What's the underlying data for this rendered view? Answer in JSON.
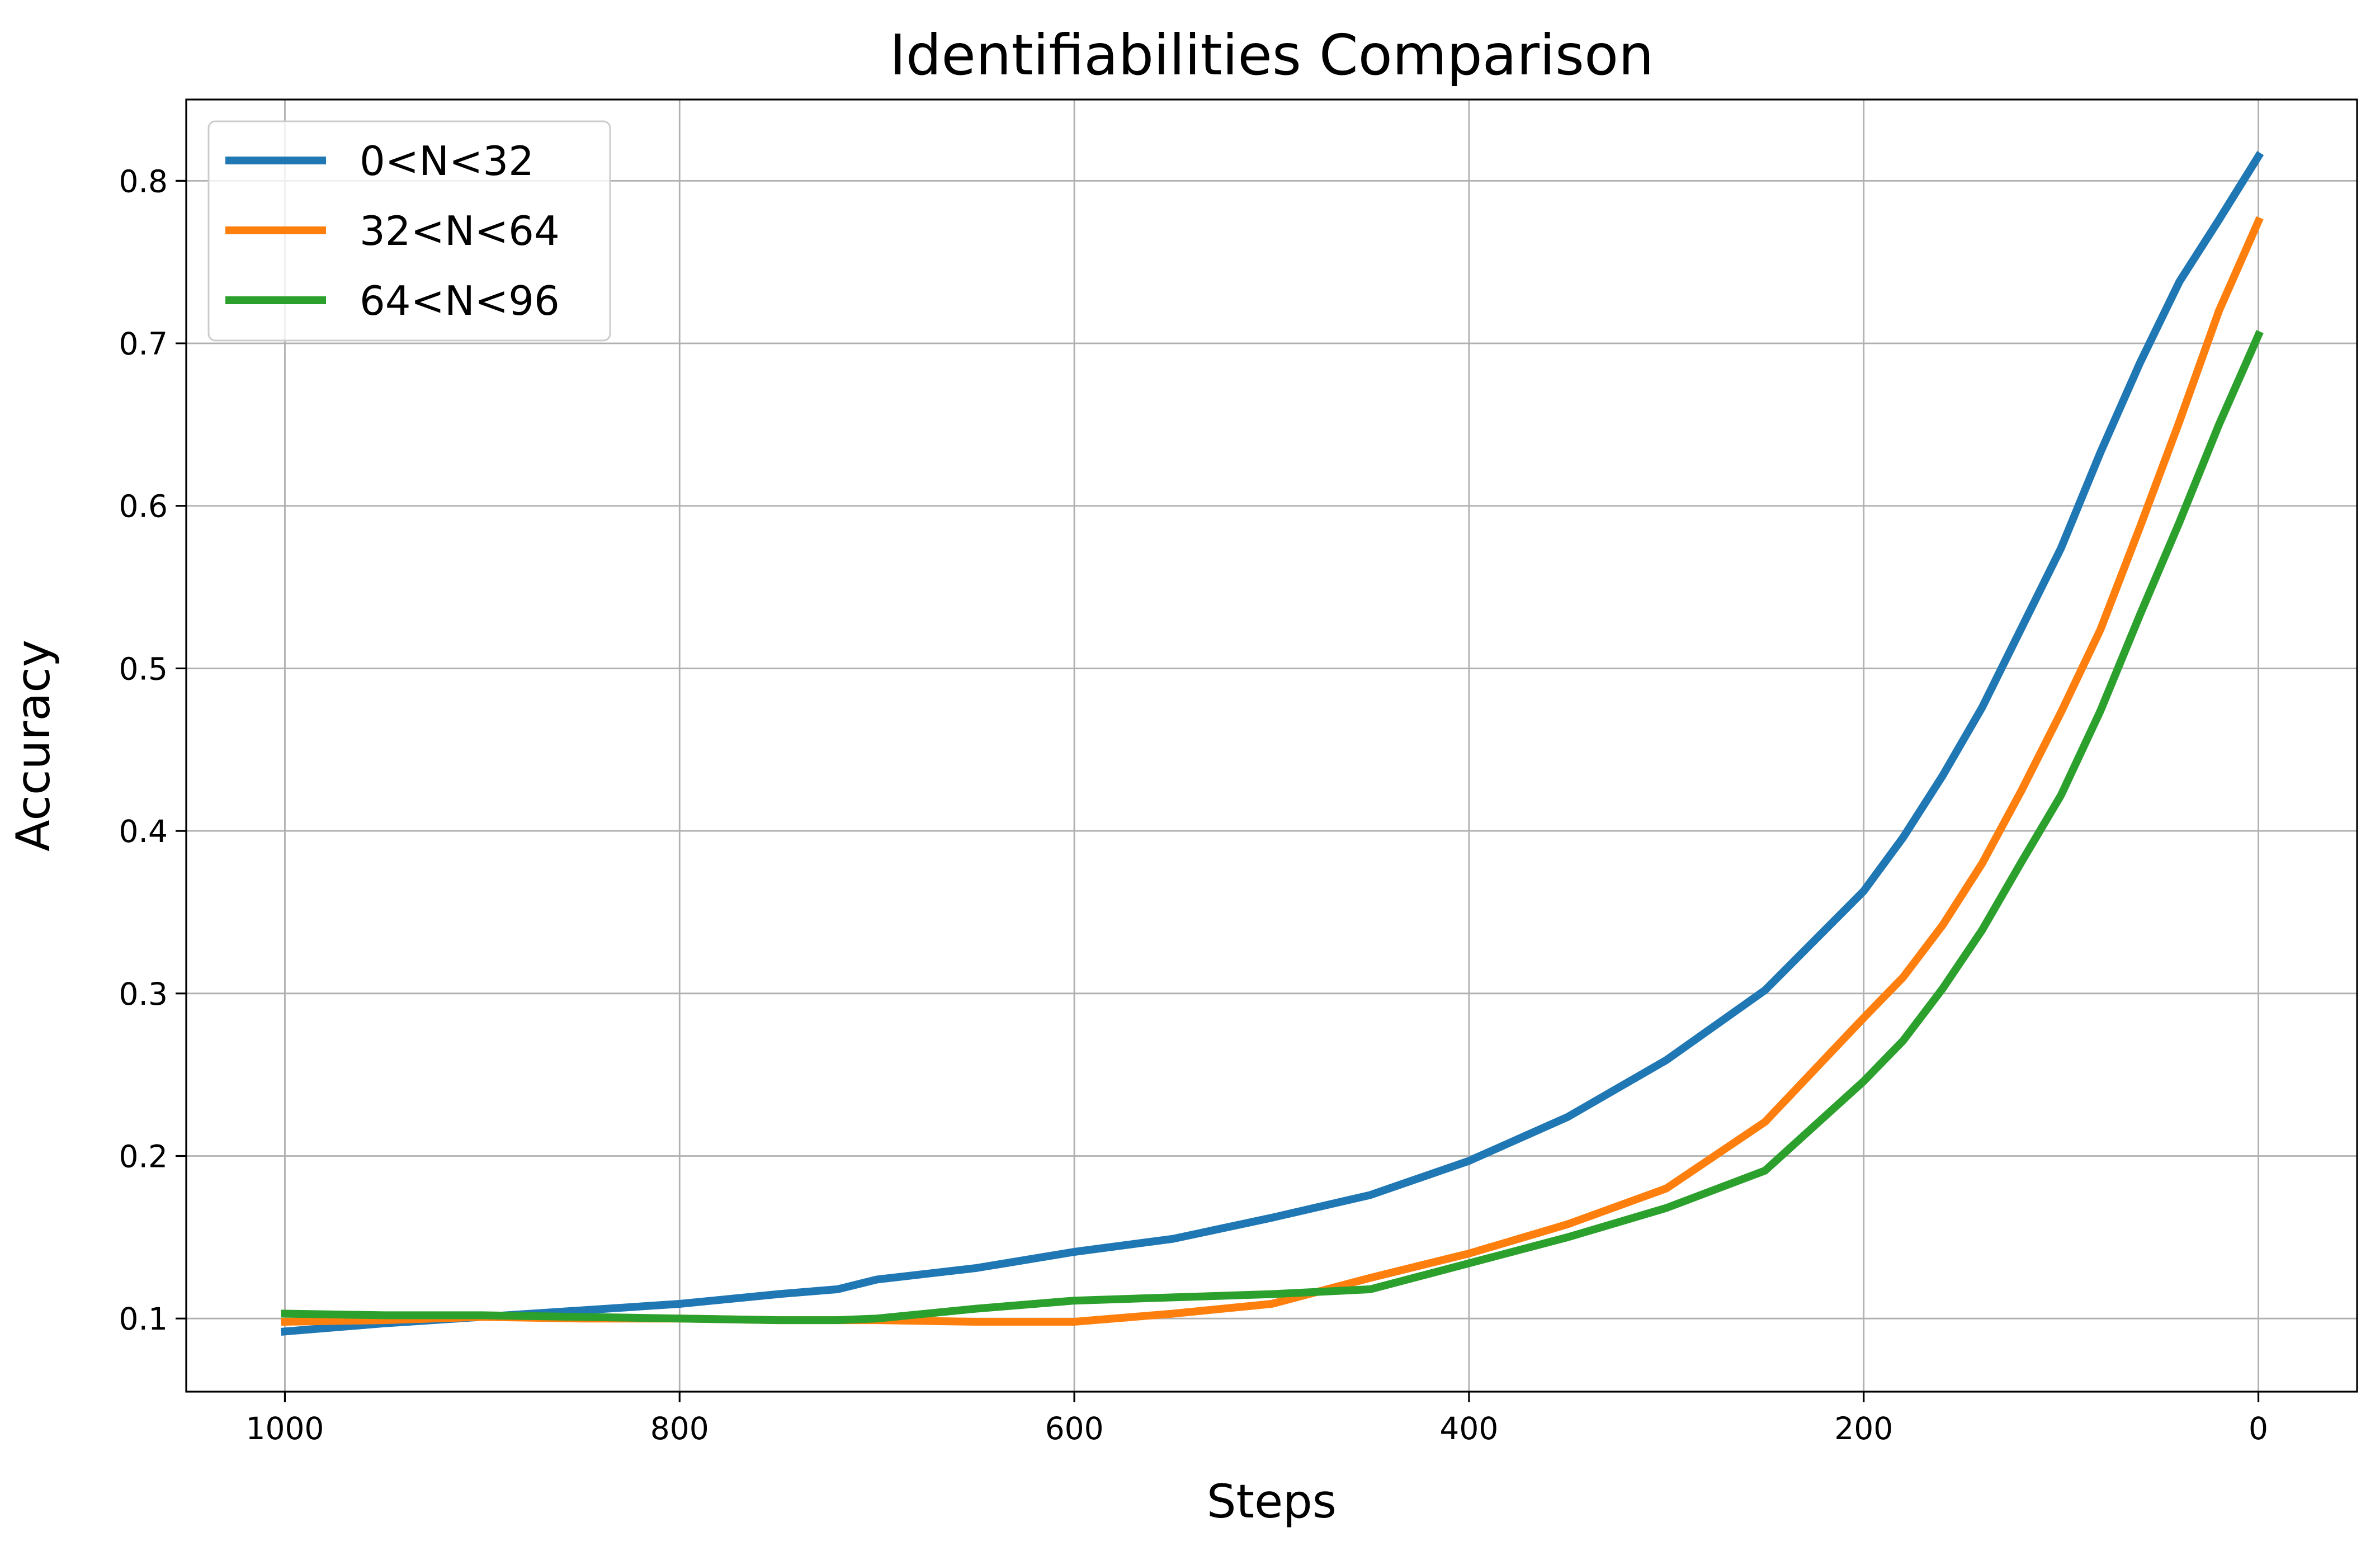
{
  "chart_data": {
    "type": "line",
    "title": "Identifiabilities Comparison",
    "xlabel": "Steps",
    "ylabel": "Accuracy",
    "xlim": [
      1050,
      -50
    ],
    "ylim": [
      0.055,
      0.85
    ],
    "x_inverted": true,
    "xticks": [
      1000,
      800,
      600,
      400,
      200,
      0
    ],
    "xtick_labels": [
      "1000",
      "800",
      "600",
      "400",
      "200",
      "0"
    ],
    "yticks": [
      0.1,
      0.2,
      0.3,
      0.4,
      0.5,
      0.6,
      0.7,
      0.8
    ],
    "ytick_labels": [
      "0.1",
      "0.2",
      "0.3",
      "0.4",
      "0.5",
      "0.6",
      "0.7",
      "0.8"
    ],
    "grid": true,
    "legend_position": "upper-left",
    "series": [
      {
        "name": "0<N<32",
        "color": "#1f77b4",
        "x": [
          1000,
          950,
          900,
          850,
          800,
          750,
          720,
          700,
          650,
          600,
          550,
          500,
          450,
          400,
          350,
          300,
          250,
          200,
          180,
          160,
          140,
          120,
          100,
          80,
          60,
          40,
          20,
          0
        ],
        "y": [
          0.092,
          0.097,
          0.101,
          0.105,
          0.109,
          0.115,
          0.118,
          0.124,
          0.131,
          0.141,
          0.149,
          0.162,
          0.176,
          0.197,
          0.224,
          0.259,
          0.302,
          0.363,
          0.396,
          0.434,
          0.476,
          0.525,
          0.574,
          0.633,
          0.688,
          0.738,
          0.776,
          0.815
        ]
      },
      {
        "name": "32<N<64",
        "color": "#ff7f0e",
        "x": [
          1000,
          950,
          900,
          850,
          800,
          750,
          700,
          650,
          600,
          550,
          500,
          450,
          400,
          350,
          300,
          250,
          200,
          180,
          160,
          140,
          120,
          100,
          80,
          60,
          40,
          20,
          0
        ],
        "y": [
          0.098,
          0.099,
          0.101,
          0.1,
          0.1,
          0.099,
          0.099,
          0.098,
          0.098,
          0.103,
          0.109,
          0.125,
          0.14,
          0.158,
          0.18,
          0.221,
          0.285,
          0.31,
          0.342,
          0.38,
          0.425,
          0.473,
          0.524,
          0.587,
          0.652,
          0.72,
          0.775
        ]
      },
      {
        "name": "64<N<96",
        "color": "#2ca02c",
        "x": [
          1000,
          950,
          900,
          850,
          800,
          750,
          720,
          700,
          650,
          600,
          550,
          500,
          450,
          400,
          350,
          300,
          250,
          200,
          180,
          160,
          140,
          120,
          100,
          80,
          60,
          40,
          20,
          0
        ],
        "y": [
          0.103,
          0.102,
          0.102,
          0.101,
          0.1,
          0.099,
          0.099,
          0.1,
          0.106,
          0.111,
          0.113,
          0.115,
          0.118,
          0.134,
          0.15,
          0.168,
          0.191,
          0.246,
          0.271,
          0.303,
          0.339,
          0.381,
          0.422,
          0.474,
          0.533,
          0.59,
          0.65,
          0.705
        ]
      }
    ]
  }
}
